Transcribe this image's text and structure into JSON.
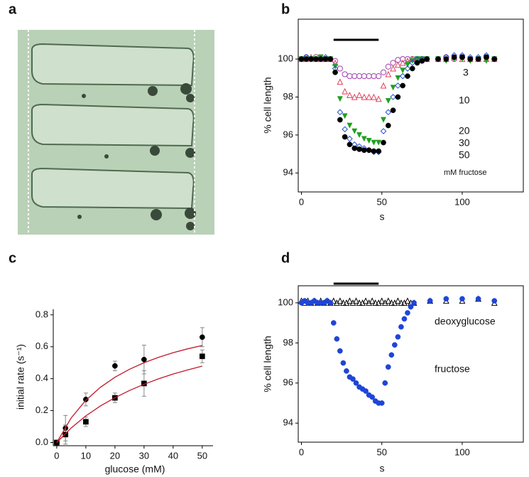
{
  "panel_labels": [
    "a",
    "b",
    "c",
    "d"
  ],
  "chart_data": [
    {
      "type": "scatter",
      "ylabel": "% cell length",
      "xlabel": "s",
      "xlim": [
        -2,
        138
      ],
      "ylim": [
        93,
        102.1
      ],
      "xticks": [
        0,
        50,
        100
      ],
      "yticks": [
        94,
        96,
        98,
        100
      ],
      "box": true,
      "stimulus": [
        20,
        48
      ],
      "annotation": "mM fructose",
      "x": [
        0,
        3,
        6,
        9,
        12,
        15,
        18,
        21,
        24,
        27,
        30,
        33,
        36,
        39,
        42,
        45,
        48,
        51,
        54,
        57,
        60,
        63,
        66,
        69,
        72,
        75,
        78,
        85,
        90,
        95,
        100,
        105,
        110,
        115,
        120
      ],
      "series": [
        {
          "name": "3",
          "color": "#a040b0",
          "marker": "circle-open",
          "values": [
            100,
            100.1,
            100,
            100.1,
            100,
            100,
            100,
            99.9,
            99.5,
            99.2,
            99.1,
            99.1,
            99.1,
            99.1,
            99.1,
            99.1,
            99.1,
            99.3,
            99.6,
            99.8,
            99.95,
            100,
            100,
            100,
            100,
            100,
            100,
            100,
            100.1,
            100,
            100.1,
            100,
            100,
            100.1,
            100
          ]
        },
        {
          "name": "10",
          "color": "#e0405a",
          "marker": "triangle-open",
          "values": [
            100,
            100,
            100.1,
            100,
            100,
            100,
            100,
            99.8,
            98.8,
            98.3,
            98.1,
            98.0,
            98.1,
            98.0,
            98.0,
            98.0,
            97.9,
            98.6,
            99.2,
            99.5,
            99.7,
            99.8,
            99.9,
            100,
            100,
            100,
            100,
            100,
            100,
            100.1,
            100,
            100,
            100,
            100,
            100
          ]
        },
        {
          "name": "20",
          "color": "#20a020",
          "marker": "triangle-down-filled",
          "values": [
            100,
            100,
            100,
            100,
            100.1,
            100,
            100,
            99.6,
            97.9,
            97.0,
            96.5,
            96.2,
            96.0,
            95.8,
            95.7,
            95.6,
            95.6,
            96.8,
            97.8,
            98.5,
            99.0,
            99.4,
            99.7,
            99.9,
            100,
            100,
            100,
            100,
            99.9,
            100,
            100,
            99.9,
            100,
            99.9,
            100
          ]
        },
        {
          "name": "30",
          "color": "#2050d0",
          "marker": "diamond-open",
          "values": [
            100,
            100.1,
            100,
            100,
            100,
            100.1,
            100,
            99.5,
            97.2,
            96.3,
            95.8,
            95.5,
            95.4,
            95.3,
            95.2,
            95.1,
            95.1,
            96.2,
            97.2,
            98.0,
            98.6,
            99.1,
            99.5,
            99.8,
            100,
            100,
            100,
            100,
            100.1,
            100.2,
            100.2,
            100.1,
            100.1,
            100.2,
            100
          ]
        },
        {
          "name": "50",
          "color": "#000000",
          "marker": "circle-filled",
          "values": [
            100,
            100,
            100,
            100,
            100,
            100,
            100,
            99.3,
            96.8,
            95.9,
            95.5,
            95.3,
            95.25,
            95.2,
            95.2,
            95.15,
            95.15,
            95.6,
            96.5,
            97.3,
            98.0,
            98.6,
            99.1,
            99.5,
            99.8,
            99.9,
            100,
            100,
            100,
            100.1,
            100.1,
            100,
            100,
            100.1,
            100
          ]
        }
      ]
    },
    {
      "type": "scatter",
      "ylabel": "initial rate (s⁻¹)",
      "xlabel": "glucose (mM)",
      "xlim": [
        -1.2,
        53.7
      ],
      "ylim": [
        -0.02,
        0.835
      ],
      "xticks": [
        0,
        10,
        20,
        30,
        40,
        50
      ],
      "yticks": [
        {
          "value": 0,
          "label": "0.0"
        },
        0.2,
        0.4,
        0.6,
        0.8
      ],
      "box": false,
      "x": [
        0,
        3,
        10,
        20,
        30,
        50
      ],
      "series": [
        {
          "color": "#000000",
          "marker": "circle-filled",
          "values": [
            0,
            0.09,
            0.27,
            0.48,
            0.52,
            0.66
          ],
          "errors": [
            0,
            0.08,
            0.04,
            0.03,
            0.09,
            0.06
          ]
        },
        {
          "color": "#000000",
          "marker": "square-filled",
          "values": [
            0,
            0.05,
            0.13,
            0.28,
            0.37,
            0.54
          ],
          "errors": [
            0,
            0.06,
            0.03,
            0.03,
            0.08,
            0.04
          ]
        },
        {
          "color": "#c0182a",
          "marker": "line",
          "x": [
            0,
            5,
            10,
            15,
            20,
            25,
            30,
            35,
            40,
            45,
            50
          ],
          "values": [
            0,
            0.155,
            0.265,
            0.346,
            0.409,
            0.459,
            0.5,
            0.534,
            0.563,
            0.587,
            0.608
          ]
        },
        {
          "color": "#c0182a",
          "marker": "line",
          "x": [
            0,
            5,
            10,
            15,
            20,
            25,
            30,
            35,
            40,
            45,
            50
          ],
          "values": [
            0,
            0.092,
            0.167,
            0.229,
            0.281,
            0.326,
            0.365,
            0.399,
            0.429,
            0.455,
            0.479
          ]
        }
      ]
    },
    {
      "type": "scatter",
      "ylabel": "% cell length",
      "xlabel": "s",
      "xlim": [
        -2,
        138
      ],
      "ylim": [
        93.05,
        100.85
      ],
      "xticks": [
        0,
        50,
        100
      ],
      "yticks": [
        94,
        96,
        98,
        100
      ],
      "box": true,
      "stimulus": [
        20,
        48
      ],
      "x": [
        0,
        2,
        4,
        6,
        8,
        10,
        12,
        14,
        16,
        18,
        20,
        22,
        24,
        26,
        28,
        30,
        32,
        34,
        36,
        38,
        40,
        42,
        44,
        46,
        48,
        50,
        52,
        54,
        56,
        58,
        60,
        62,
        64,
        66,
        68,
        70,
        80,
        90,
        100,
        110,
        120
      ],
      "series": [
        {
          "name": "deoxyglucose",
          "color": "#000000",
          "marker": "triangle-open",
          "values": [
            100.1,
            100,
            100.1,
            100,
            100.1,
            100,
            100.1,
            100,
            100.1,
            100,
            100.1,
            100,
            100.1,
            100,
            100,
            100.1,
            100,
            100.1,
            100,
            100,
            100.1,
            100,
            100.1,
            100,
            100,
            100.1,
            100,
            100.1,
            100,
            100,
            100.1,
            100,
            100,
            100.1,
            100,
            100,
            100.1,
            100.1,
            100.1,
            100.2,
            100
          ]
        },
        {
          "name": "fructose",
          "color": "#1f45d8",
          "marker": "circle-filled",
          "values": [
            100,
            100.1,
            100,
            100,
            100.1,
            100,
            100,
            100,
            100.1,
            100,
            99.0,
            98.2,
            97.6,
            97.0,
            96.6,
            96.3,
            96.2,
            96.0,
            95.8,
            95.7,
            95.6,
            95.4,
            95.3,
            95.1,
            95.0,
            95.0,
            96.0,
            96.8,
            97.4,
            97.9,
            98.3,
            98.8,
            99.2,
            99.5,
            99.8,
            100,
            100.1,
            100.2,
            100.2,
            100.2,
            100.1
          ]
        }
      ]
    }
  ]
}
